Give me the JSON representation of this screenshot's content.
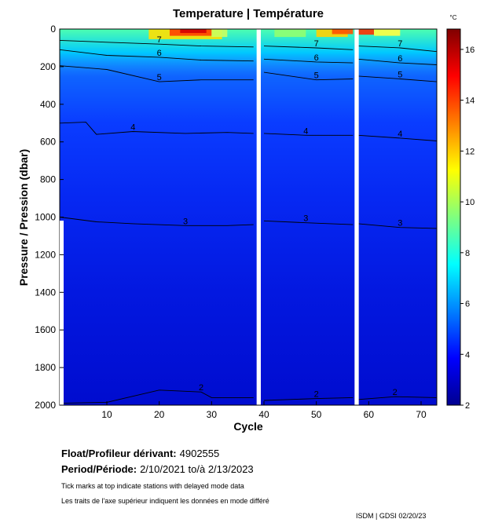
{
  "chart_data": {
    "type": "heatmap",
    "title": "Temperature | Température",
    "xlabel": "Cycle",
    "ylabel": "Pressure / Pression (dbar)",
    "xlim": [
      1,
      73
    ],
    "ylim": [
      2000,
      0
    ],
    "y_reversed": true,
    "x_ticks": [
      10,
      20,
      30,
      40,
      50,
      60,
      70
    ],
    "y_ticks": [
      0,
      200,
      400,
      600,
      800,
      1000,
      1200,
      1400,
      1600,
      1800,
      2000
    ],
    "colorbar": {
      "unit": "°C",
      "min": 2,
      "max": 16.8,
      "ticks": [
        2,
        4,
        6,
        8,
        10,
        12,
        14,
        16
      ],
      "colormap": "jet"
    },
    "data_gaps_cycles": [
      [
        38.6,
        39.4
      ],
      [
        57.3,
        58.1
      ]
    ],
    "contours": [
      {
        "level": 2,
        "label": "2",
        "pressure_by_cycle": [
          [
            1,
            1990
          ],
          [
            10,
            1985
          ],
          [
            20,
            1920
          ],
          [
            28,
            1930
          ],
          [
            30,
            1960
          ],
          [
            38,
            1960
          ],
          [
            40,
            1975
          ],
          [
            50,
            1965
          ],
          [
            57,
            1960
          ],
          [
            58,
            1970
          ],
          [
            65,
            1955
          ],
          [
            73,
            1960
          ]
        ]
      },
      {
        "level": 3,
        "label": "3",
        "pressure_by_cycle": [
          [
            1,
            1000
          ],
          [
            8,
            1025
          ],
          [
            15,
            1035
          ],
          [
            25,
            1045
          ],
          [
            33,
            1045
          ],
          [
            38,
            1040
          ],
          [
            40,
            1020
          ],
          [
            48,
            1030
          ],
          [
            57,
            1040
          ],
          [
            58,
            1035
          ],
          [
            66,
            1055
          ],
          [
            73,
            1060
          ]
        ]
      },
      {
        "level": 4,
        "label": "4",
        "pressure_by_cycle": [
          [
            1,
            500
          ],
          [
            6,
            495
          ],
          [
            8,
            560
          ],
          [
            15,
            545
          ],
          [
            25,
            555
          ],
          [
            33,
            550
          ],
          [
            38,
            555
          ],
          [
            40,
            555
          ],
          [
            48,
            565
          ],
          [
            57,
            565
          ],
          [
            58,
            565
          ],
          [
            66,
            580
          ],
          [
            73,
            595
          ]
        ]
      },
      {
        "level": 5,
        "label": "5",
        "pressure_by_cycle": [
          [
            1,
            195
          ],
          [
            10,
            215
          ],
          [
            20,
            280
          ],
          [
            28,
            270
          ],
          [
            38,
            270
          ],
          [
            40,
            230
          ],
          [
            50,
            270
          ],
          [
            57,
            265
          ],
          [
            58,
            250
          ],
          [
            66,
            265
          ],
          [
            73,
            280
          ]
        ]
      },
      {
        "level": 6,
        "label": "6",
        "pressure_by_cycle": [
          [
            1,
            110
          ],
          [
            10,
            140
          ],
          [
            20,
            150
          ],
          [
            28,
            165
          ],
          [
            38,
            170
          ],
          [
            40,
            160
          ],
          [
            50,
            175
          ],
          [
            57,
            180
          ],
          [
            58,
            160
          ],
          [
            66,
            180
          ],
          [
            73,
            190
          ]
        ]
      },
      {
        "level": 7,
        "label": "7",
        "pressure_by_cycle": [
          [
            1,
            60
          ],
          [
            10,
            70
          ],
          [
            20,
            80
          ],
          [
            28,
            90
          ],
          [
            38,
            95
          ],
          [
            40,
            90
          ],
          [
            50,
            100
          ],
          [
            57,
            110
          ],
          [
            58,
            90
          ],
          [
            66,
            100
          ],
          [
            73,
            120
          ]
        ]
      }
    ]
  },
  "info": {
    "float_label": "Float/Profileur dérivant:",
    "float_value": "4902555",
    "period_label": "Period/Période:",
    "period_value": "2/10/2021  to/à  2/13/2023",
    "note_en": "Tick marks at top indicate stations with delayed mode data",
    "note_fr": "Les traits de l'axe supérieur indiquent les données en mode différé"
  },
  "footer": "ISDM | GDSI  02/20/23"
}
